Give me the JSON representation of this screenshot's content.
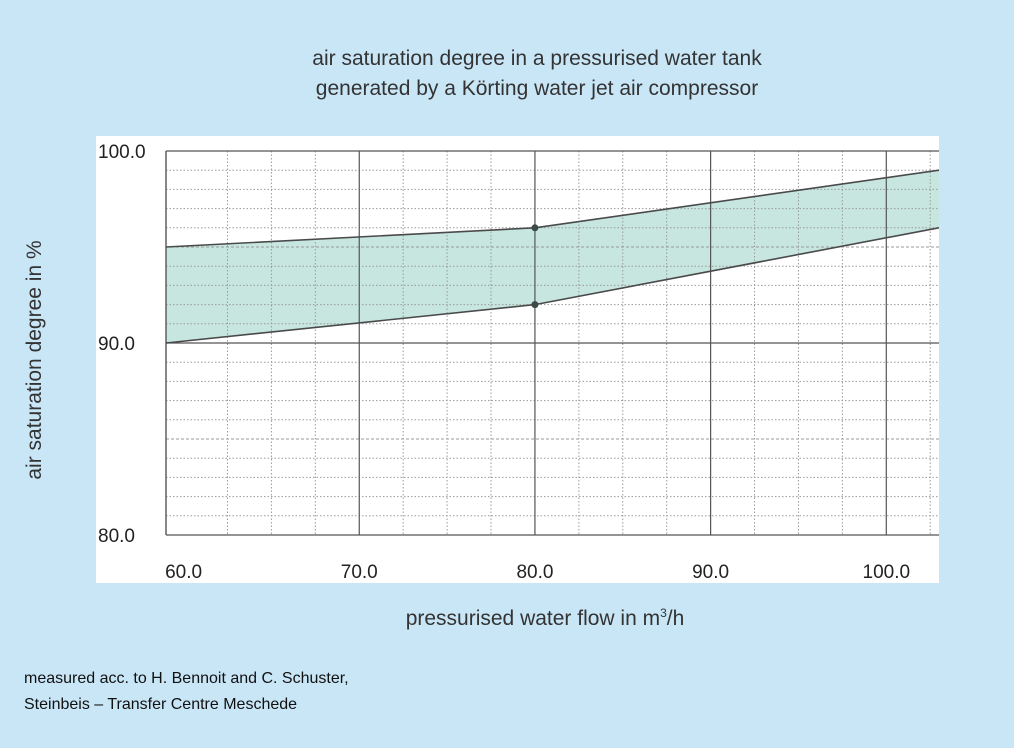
{
  "title_line1": "air saturation degree in a pressurised water tank",
  "title_line2": "generated by a Körting water jet air compressor",
  "ylabel": "air saturation degree in %",
  "xlabel_main": "pressurised water flow in m",
  "xlabel_sup": "3",
  "xlabel_tail": "/h",
  "credit_line1": "measured acc. to H. Bennoit and C. Schuster,",
  "credit_line2": "Steinbeis – Transfer Centre Meschede",
  "colors": {
    "background": "#c9e6f7",
    "band_fill": "#c6e6df",
    "line": "#4a4a4a",
    "grid_major": "#555555",
    "grid_minor": "#9a9a9a"
  },
  "chart_data": {
    "type": "area",
    "title": "air saturation degree in a pressurised water tank generated by a Körting water jet air compressor",
    "xlabel": "pressurised water flow in m³/h",
    "ylabel": "air saturation degree in %",
    "xlim": [
      59,
      103
    ],
    "ylim": [
      80,
      100
    ],
    "x_ticks": [
      "60.0",
      "70.0",
      "80.0",
      "90.0",
      "100.0"
    ],
    "x_tick_values": [
      60,
      70,
      80,
      90,
      100
    ],
    "y_ticks": [
      "80.0",
      "90.0",
      "100.0"
    ],
    "y_tick_values": [
      80,
      90,
      100
    ],
    "grid": true,
    "series": [
      {
        "role": "upper",
        "x": [
          59,
          80,
          103
        ],
        "y": [
          95.0,
          96.0,
          99.0
        ],
        "markers_at": [
          80
        ]
      },
      {
        "role": "lower",
        "x": [
          59,
          80,
          103
        ],
        "y": [
          90.0,
          92.0,
          96.0
        ],
        "markers_at": [
          80
        ]
      }
    ]
  }
}
